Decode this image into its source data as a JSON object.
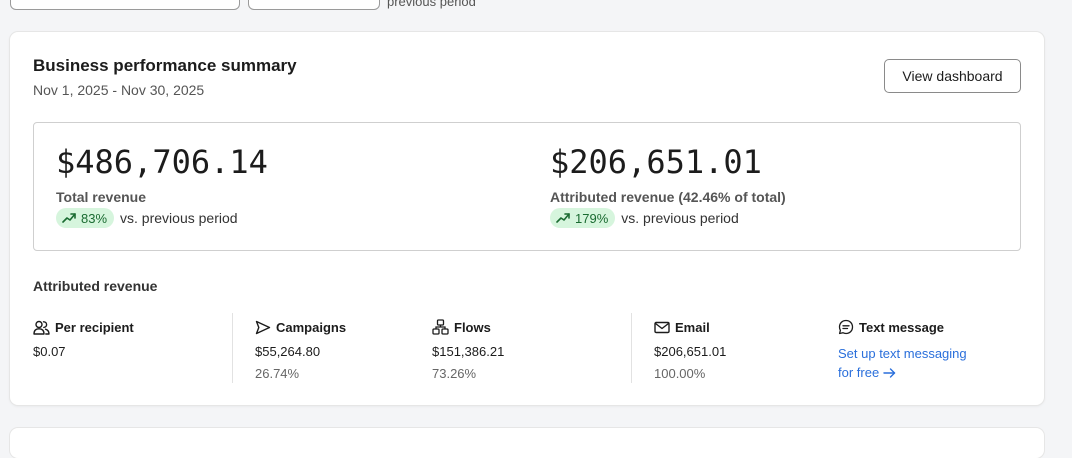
{
  "top": {
    "partial_text": "previous period"
  },
  "card": {
    "title": "Business performance summary",
    "date_range": "Nov 1, 2025 - Nov 30, 2025",
    "view_dashboard_label": "View dashboard"
  },
  "summary": {
    "total": {
      "amount": "$486,706.14",
      "label": "Total revenue",
      "change": "83%",
      "change_text": "vs. previous period"
    },
    "attributed": {
      "amount": "$206,651.01",
      "label": "Attributed revenue (42.46% of total)",
      "change": "179%",
      "change_text": "vs. previous period"
    }
  },
  "attributed_revenue": {
    "section_title": "Attributed revenue",
    "per_recipient": {
      "label": "Per recipient",
      "icon": "people-icon",
      "value": "$0.07"
    },
    "campaigns": {
      "label": "Campaigns",
      "icon": "send-icon",
      "value": "$55,264.80",
      "pct": "26.74%"
    },
    "flows": {
      "label": "Flows",
      "icon": "flow-icon",
      "value": "$151,386.21",
      "pct": "73.26%"
    },
    "email": {
      "label": "Email",
      "icon": "envelope-icon",
      "value": "$206,651.01",
      "pct": "100.00%"
    },
    "text_message": {
      "label": "Text message",
      "icon": "message-icon",
      "link_line1": "Set up text messaging",
      "link_line2": "for free"
    }
  },
  "colors": {
    "accent_link": "#2a6fdb",
    "badge_bg": "#d6f5dd",
    "badge_text": "#1a6b31"
  }
}
